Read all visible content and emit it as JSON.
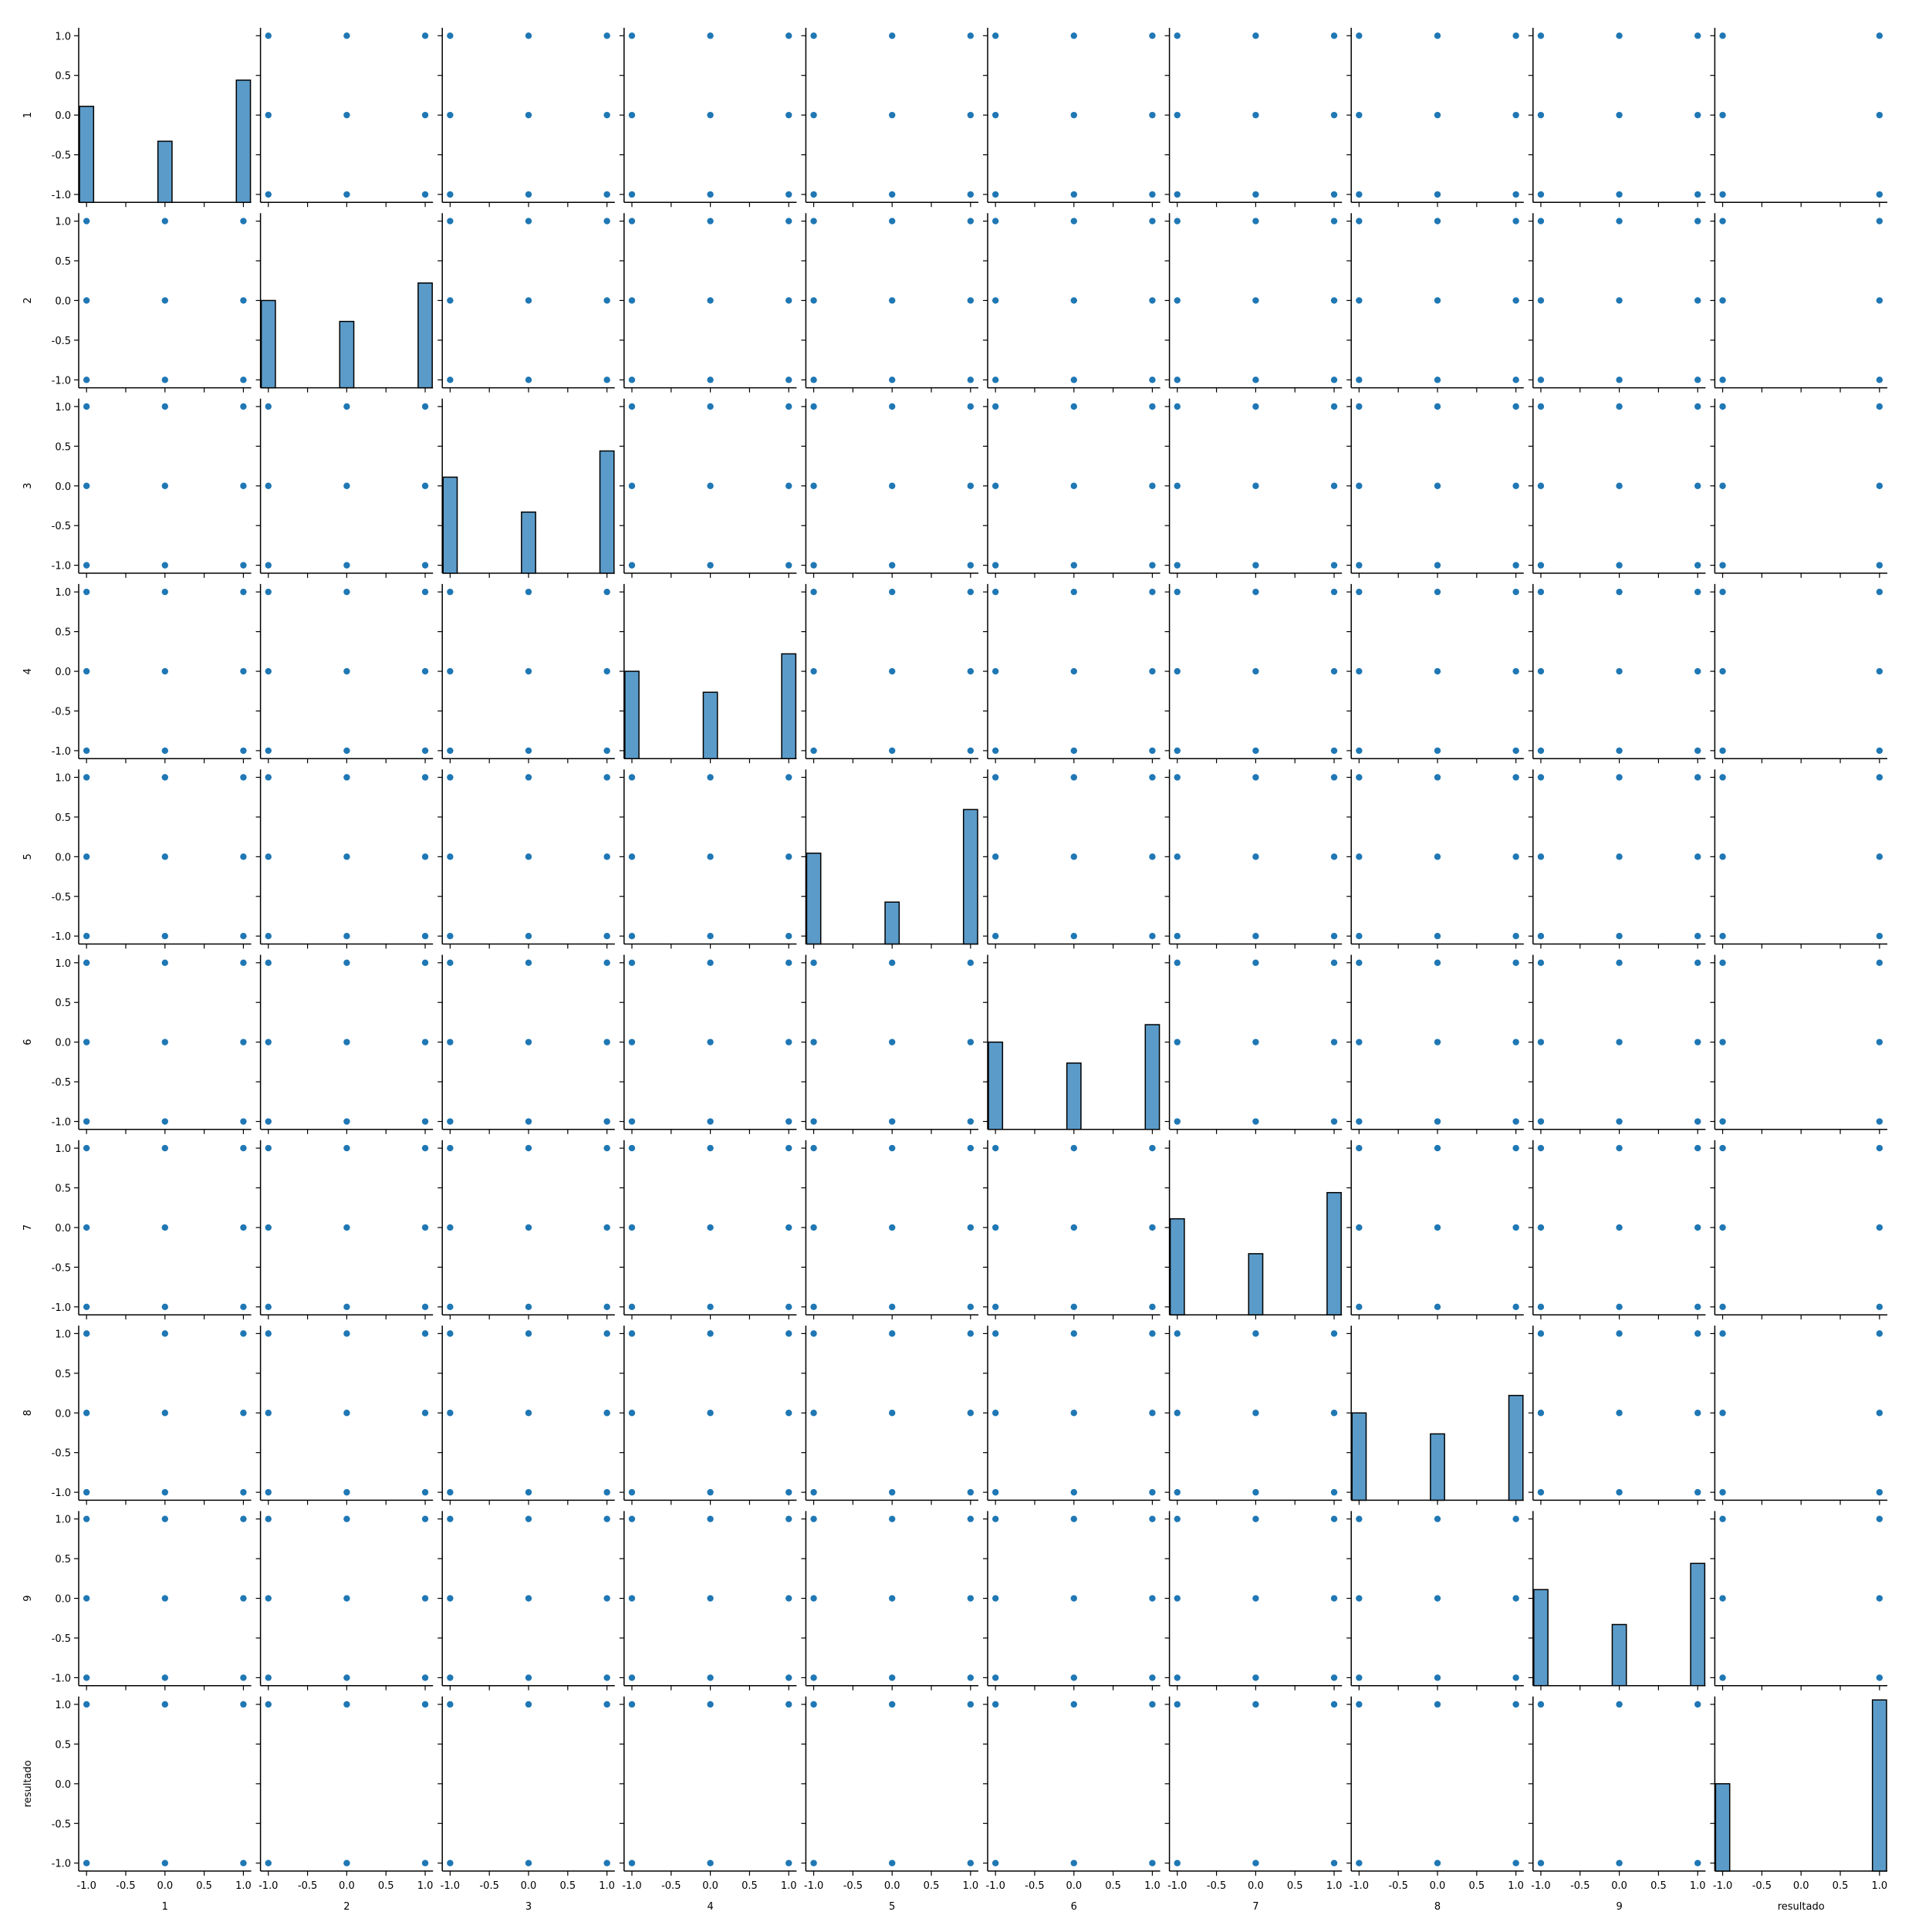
{
  "chart_data": {
    "type": "pairplot",
    "variables": [
      "1",
      "2",
      "3",
      "4",
      "5",
      "6",
      "7",
      "8",
      "9",
      "resultado"
    ],
    "axis_range": [
      -1.1,
      1.1
    ],
    "tick_values": [
      -1.0,
      -0.5,
      0.0,
      0.5,
      1.0
    ],
    "tick_labels": [
      "-1.0",
      "-0.5",
      "0.0",
      "0.5",
      "1.0"
    ],
    "grid": false,
    "colors": {
      "point": "#1f77b4",
      "bar_fill": "#5b9bc9",
      "bar_edge": "#000000",
      "axis": "#000000"
    },
    "diagonal": {
      "type": "histogram",
      "bar_width": 0.18,
      "bars": [
        [
          {
            "x": -1,
            "rel": 0.55
          },
          {
            "x": 0,
            "rel": 0.35
          },
          {
            "x": 1,
            "rel": 0.7
          }
        ],
        [
          {
            "x": -1,
            "rel": 0.5
          },
          {
            "x": 0,
            "rel": 0.38
          },
          {
            "x": 1,
            "rel": 0.6
          }
        ],
        [
          {
            "x": -1,
            "rel": 0.55
          },
          {
            "x": 0,
            "rel": 0.35
          },
          {
            "x": 1,
            "rel": 0.7
          }
        ],
        [
          {
            "x": -1,
            "rel": 0.5
          },
          {
            "x": 0,
            "rel": 0.38
          },
          {
            "x": 1,
            "rel": 0.6
          }
        ],
        [
          {
            "x": -1,
            "rel": 0.52
          },
          {
            "x": 0,
            "rel": 0.24
          },
          {
            "x": 1,
            "rel": 0.77
          }
        ],
        [
          {
            "x": -1,
            "rel": 0.5
          },
          {
            "x": 0,
            "rel": 0.38
          },
          {
            "x": 1,
            "rel": 0.6
          }
        ],
        [
          {
            "x": -1,
            "rel": 0.55
          },
          {
            "x": 0,
            "rel": 0.35
          },
          {
            "x": 1,
            "rel": 0.7
          }
        ],
        [
          {
            "x": -1,
            "rel": 0.5
          },
          {
            "x": 0,
            "rel": 0.38
          },
          {
            "x": 1,
            "rel": 0.6
          }
        ],
        [
          {
            "x": -1,
            "rel": 0.55
          },
          {
            "x": 0,
            "rel": 0.35
          },
          {
            "x": 1,
            "rel": 0.7
          }
        ],
        [
          {
            "x": -1,
            "rel": 0.5
          },
          {
            "x": 1,
            "rel": 0.98
          }
        ]
      ]
    },
    "offdiagonal": {
      "type": "scatter",
      "note": "each variable takes values in {-1, 0, 1}; 'resultado' takes values in {-1, 1}",
      "levels": {
        "default": [
          -1,
          0,
          1
        ],
        "resultado": [
          -1,
          1
        ]
      }
    }
  }
}
